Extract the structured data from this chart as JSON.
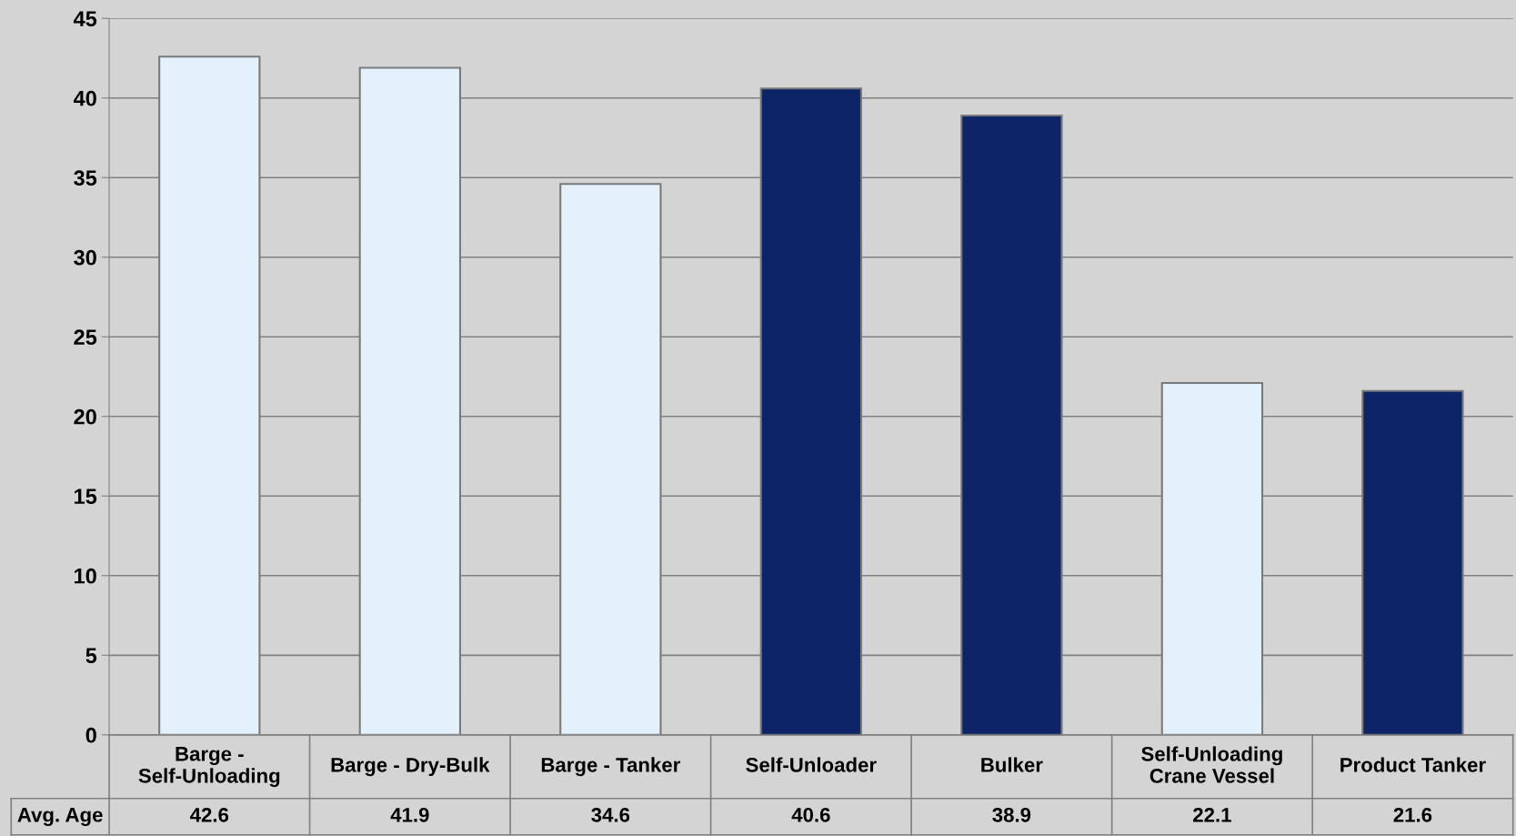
{
  "chart_data": {
    "type": "bar",
    "categories": [
      "Barge - Self-Unloading",
      "Barge - Dry-Bulk",
      "Barge - Tanker",
      "Self-Unloader",
      "Bulker",
      "Self-Unloading Crane Vessel",
      "Product Tanker"
    ],
    "series": [
      {
        "name": "Avg. Age",
        "values": [
          42.6,
          41.9,
          34.6,
          40.6,
          38.9,
          22.1,
          21.6
        ],
        "colors": [
          "#e3f1fc",
          "#e3f1fc",
          "#e3f1fc",
          "#0d2466",
          "#0d2466",
          "#e3f1fc",
          "#0d2466"
        ]
      }
    ],
    "ylim": [
      0,
      45
    ],
    "yticks": [
      0,
      5,
      10,
      15,
      20,
      25,
      30,
      35,
      40,
      45
    ],
    "grid": "y",
    "legend": "bottom left",
    "data_labels": true
  }
}
